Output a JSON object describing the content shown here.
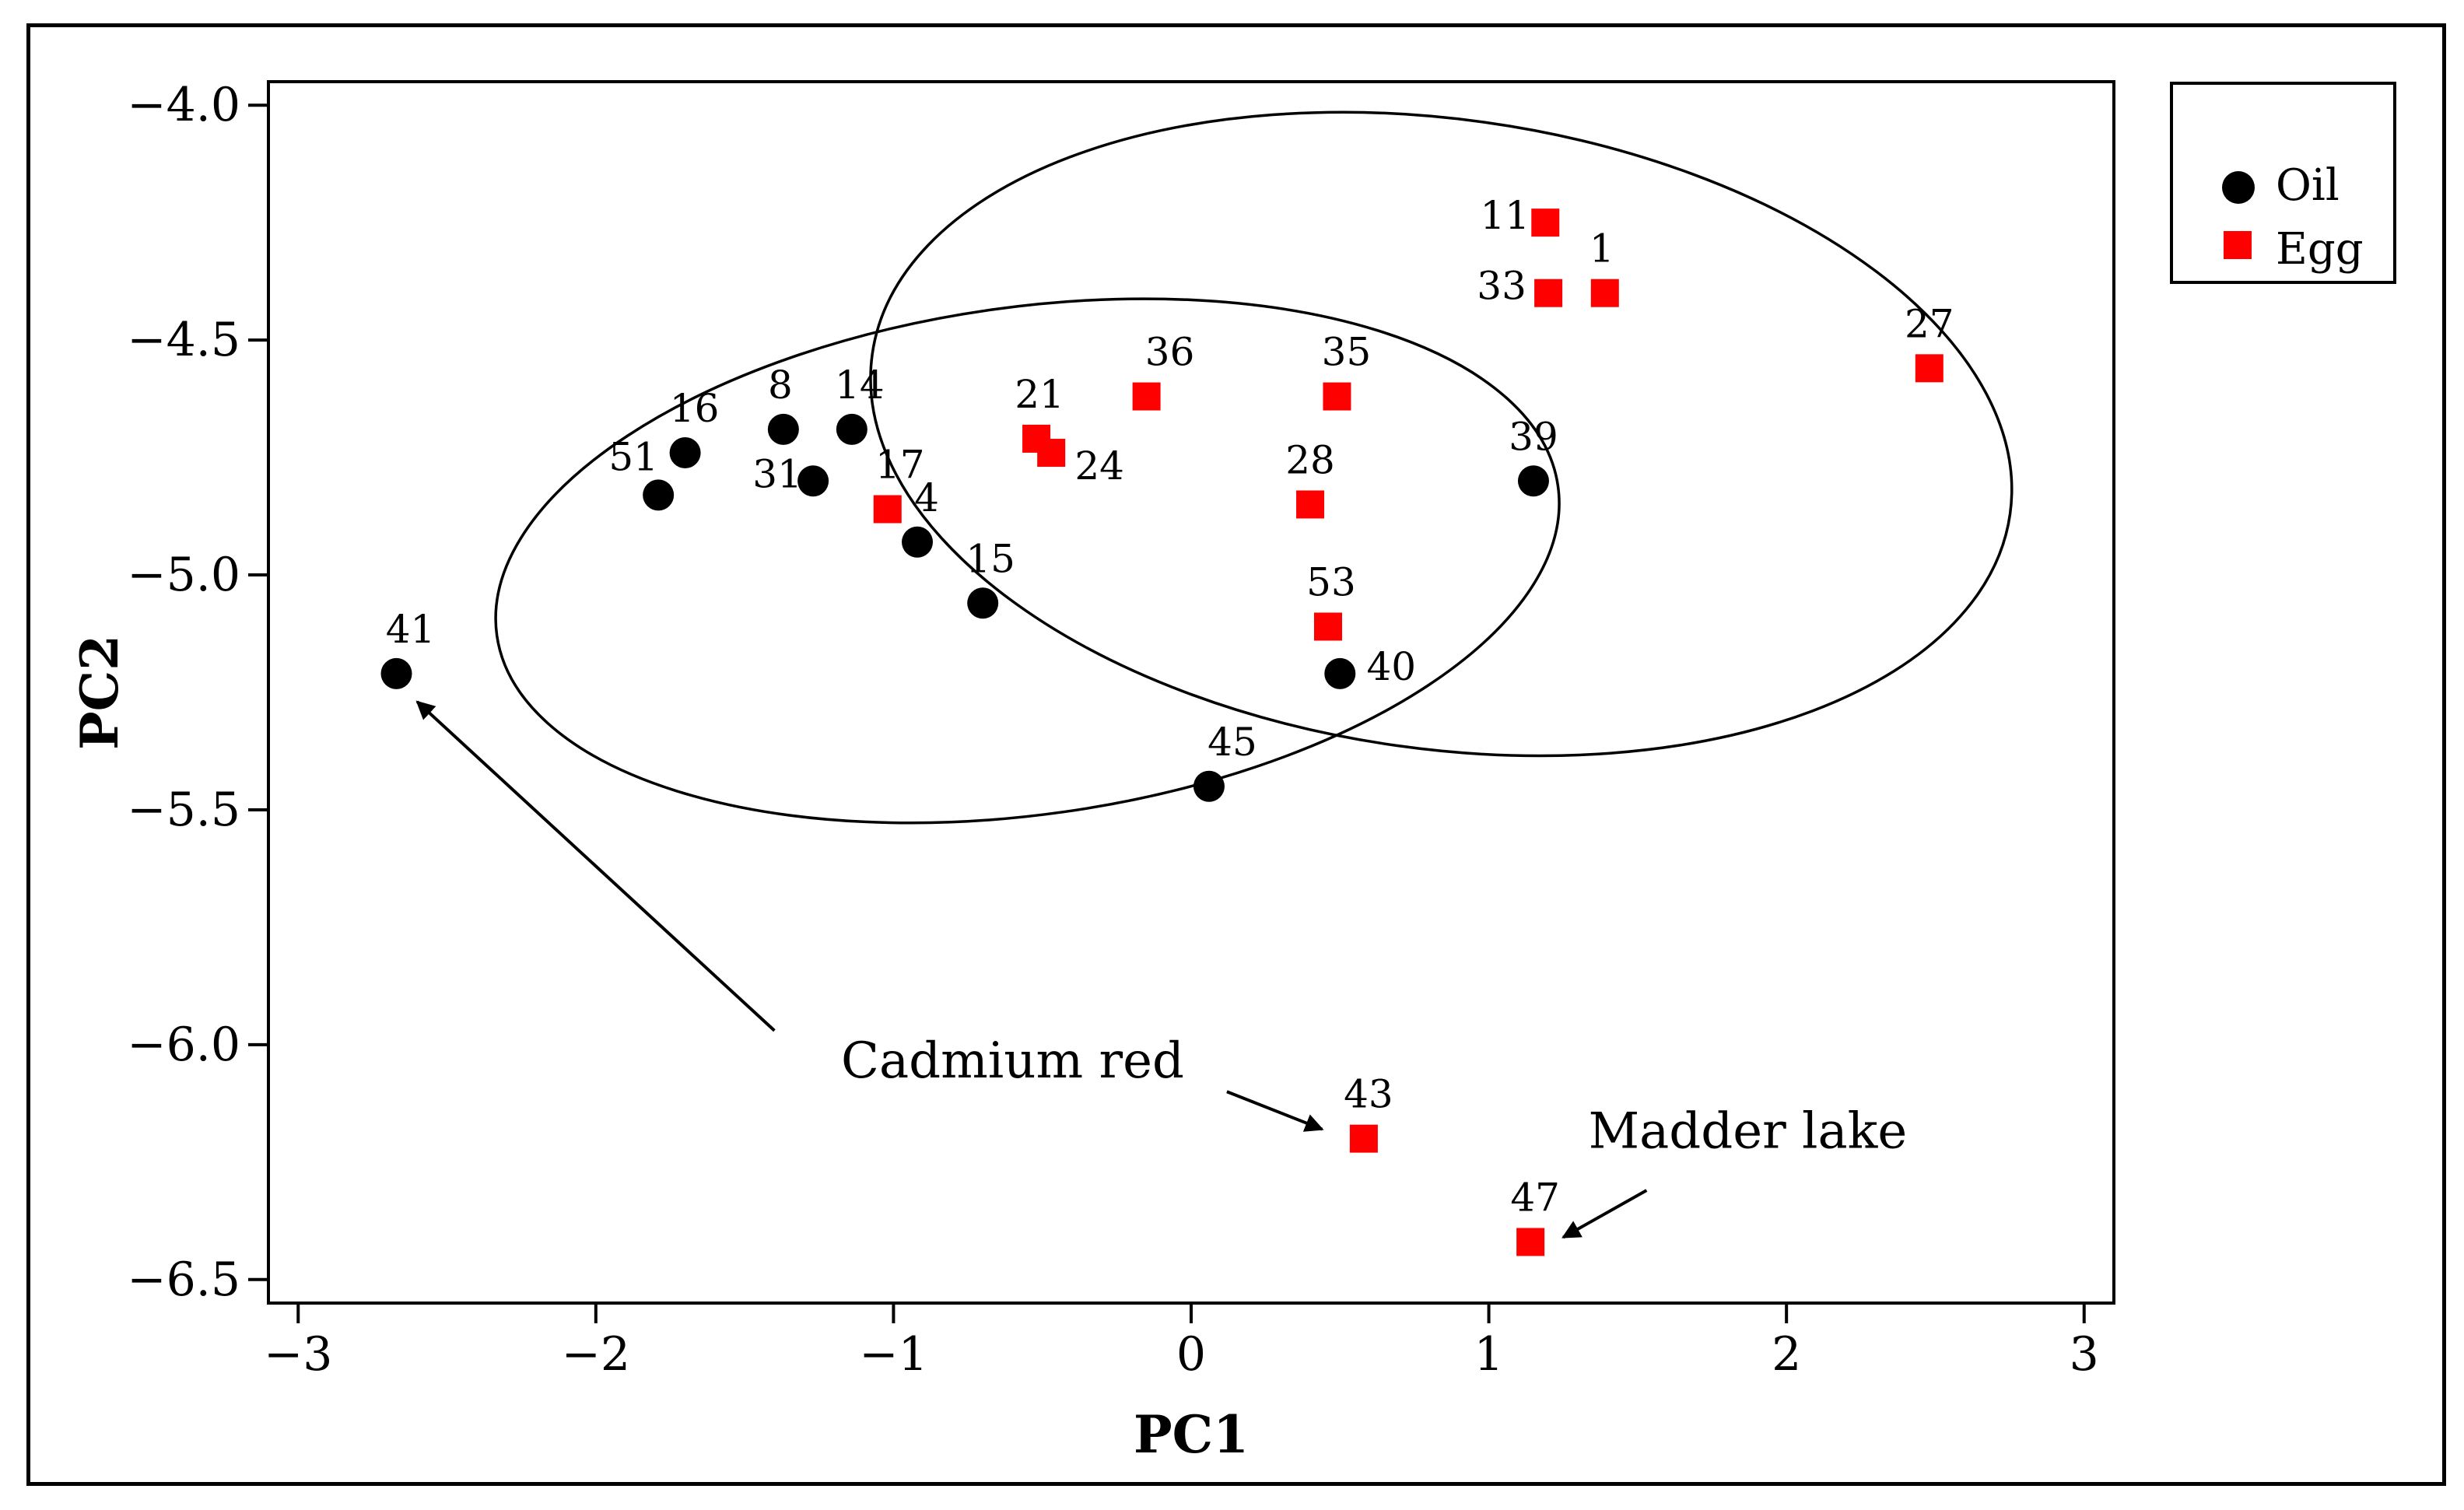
{
  "chart_data": {
    "type": "scatter",
    "title": "",
    "xlabel": "PC1",
    "ylabel": "PC2",
    "xlim": [
      -3.1,
      3.1
    ],
    "ylim": [
      -6.55,
      -3.95
    ],
    "xticks": [
      -3,
      -2,
      -1,
      0,
      1,
      2,
      3
    ],
    "yticks": [
      -4.0,
      -4.5,
      -5.0,
      -5.5,
      -6.0,
      -6.5
    ],
    "xtick_labels": [
      "−3",
      "−2",
      "−1",
      "0",
      "1",
      "2",
      "3"
    ],
    "ytick_labels": [
      "−4.0",
      "−4.5",
      "−5.0",
      "−5.5",
      "−6.0",
      "−6.5"
    ],
    "grid": false,
    "legend_position": "top-right, outside plot area",
    "legend": [
      {
        "name": "Oil",
        "marker": "circle",
        "color": "#000000"
      },
      {
        "name": "Egg",
        "marker": "square",
        "color": "#ff0000"
      }
    ],
    "series": [
      {
        "name": "Oil",
        "marker": "circle",
        "color": "#000000",
        "points": [
          {
            "label": "16",
            "x": -1.7,
            "y": -4.74
          },
          {
            "label": "51",
            "x": -1.79,
            "y": -4.83
          },
          {
            "label": "8",
            "x": -1.37,
            "y": -4.69
          },
          {
            "label": "14",
            "x": -1.14,
            "y": -4.69
          },
          {
            "label": "31",
            "x": -1.27,
            "y": -4.8
          },
          {
            "label": "4",
            "x": -0.92,
            "y": -4.93
          },
          {
            "label": "15",
            "x": -0.7,
            "y": -5.06
          },
          {
            "label": "39",
            "x": 1.15,
            "y": -4.8
          },
          {
            "label": "40",
            "x": 0.5,
            "y": -5.21
          },
          {
            "label": "45",
            "x": 0.06,
            "y": -5.45
          },
          {
            "label": "41",
            "x": -2.67,
            "y": -5.21
          }
        ]
      },
      {
        "name": "Egg",
        "marker": "square",
        "color": "#ff0000",
        "points": [
          {
            "label": "11",
            "x": 1.19,
            "y": -4.25
          },
          {
            "label": "1",
            "x": 1.39,
            "y": -4.4
          },
          {
            "label": "33",
            "x": 1.2,
            "y": -4.4
          },
          {
            "label": "27",
            "x": 2.48,
            "y": -4.56
          },
          {
            "label": "36",
            "x": -0.15,
            "y": -4.62
          },
          {
            "label": "35",
            "x": 0.49,
            "y": -4.62
          },
          {
            "label": "21",
            "x": -0.52,
            "y": -4.71
          },
          {
            "label": "24",
            "x": -0.47,
            "y": -4.74
          },
          {
            "label": "17",
            "x": -1.02,
            "y": -4.86
          },
          {
            "label": "28",
            "x": 0.4,
            "y": -4.85
          },
          {
            "label": "53",
            "x": 0.46,
            "y": -5.11
          },
          {
            "label": "43",
            "x": 0.58,
            "y": -6.2
          },
          {
            "label": "47",
            "x": 1.14,
            "y": -6.42
          }
        ]
      }
    ],
    "ellipses": [
      {
        "name": "Oil group ellipse",
        "center_x": -0.55,
        "center_y": -4.97,
        "semi_axis_x": 1.8,
        "semi_axis_y": 0.54,
        "tilt_deg": -8
      },
      {
        "name": "Egg group ellipse",
        "center_x": 0.84,
        "center_y": -4.7,
        "semi_axis_x": 1.93,
        "semi_axis_y": 0.67,
        "tilt_deg": 8
      }
    ],
    "annotations": [
      {
        "text": "Cadmium red",
        "x": -0.6,
        "y": -6.07
      },
      {
        "text": "Madder lake",
        "x": 1.87,
        "y": -6.22
      }
    ],
    "arrows": [
      {
        "from_x": -1.4,
        "from_y": -5.97,
        "to_x": -2.6,
        "to_y": -5.27
      },
      {
        "from_x": 0.12,
        "from_y": -6.1,
        "to_x": 0.44,
        "to_y": -6.18
      },
      {
        "from_x": 1.53,
        "from_y": -6.31,
        "to_x": 1.25,
        "to_y": -6.41
      }
    ]
  }
}
